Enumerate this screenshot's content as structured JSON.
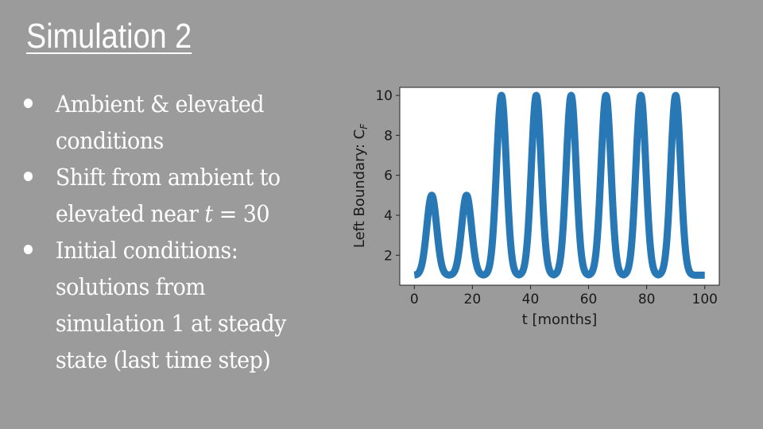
{
  "slide": {
    "title": "Simulation 2",
    "bullets": [
      {
        "parts": [
          "Ambient & elevated conditions"
        ]
      },
      {
        "parts": [
          "Shift from ambient to elevated near ",
          "t",
          " = 30"
        ]
      },
      {
        "parts": [
          "Initial conditions: solutions from simulation 1 at steady state (last time step)"
        ]
      }
    ]
  },
  "chart_data": {
    "type": "line",
    "xlabel": "t [months]",
    "ylabel": "Left Boundary: C",
    "ylabel_subscript": "F",
    "xlim": [
      -5,
      105
    ],
    "ylim": [
      0.5,
      10.4
    ],
    "xticks": [
      0,
      20,
      40,
      60,
      80,
      100
    ],
    "yticks": [
      2,
      4,
      6,
      8,
      10
    ],
    "baseline": 1,
    "peaks": [
      {
        "t": 6,
        "value": 5
      },
      {
        "t": 18,
        "value": 5
      },
      {
        "t": 30,
        "value": 10
      },
      {
        "t": 42,
        "value": 10
      },
      {
        "t": 54,
        "value": 10
      },
      {
        "t": 66,
        "value": 10
      },
      {
        "t": 78,
        "value": 10
      },
      {
        "t": 90,
        "value": 10
      }
    ],
    "t_range": [
      0,
      100
    ],
    "series_color": "#2878b5"
  }
}
